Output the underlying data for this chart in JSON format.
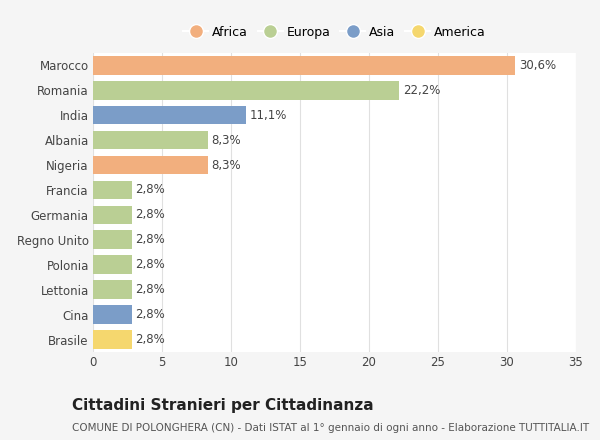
{
  "categories": [
    "Marocco",
    "Romania",
    "India",
    "Albania",
    "Nigeria",
    "Francia",
    "Germania",
    "Regno Unito",
    "Polonia",
    "Lettonia",
    "Cina",
    "Brasile"
  ],
  "values": [
    30.6,
    22.2,
    11.1,
    8.3,
    8.3,
    2.8,
    2.8,
    2.8,
    2.8,
    2.8,
    2.8,
    2.8
  ],
  "labels": [
    "30,6%",
    "22,2%",
    "11,1%",
    "8,3%",
    "8,3%",
    "2,8%",
    "2,8%",
    "2,8%",
    "2,8%",
    "2,8%",
    "2,8%",
    "2,8%"
  ],
  "continents": [
    "Africa",
    "Europa",
    "Asia",
    "Europa",
    "Africa",
    "Europa",
    "Europa",
    "Europa",
    "Europa",
    "Europa",
    "Asia",
    "America"
  ],
  "colors": {
    "Africa": "#F2AF7E",
    "Europa": "#BACF94",
    "Asia": "#7B9DC8",
    "America": "#F5D76E"
  },
  "legend_order": [
    "Africa",
    "Europa",
    "Asia",
    "America"
  ],
  "title": "Cittadini Stranieri per Cittadinanza",
  "subtitle": "COMUNE DI POLONGHERA (CN) - Dati ISTAT al 1° gennaio di ogni anno - Elaborazione TUTTITALIA.IT",
  "xlim": [
    0,
    35
  ],
  "xticks": [
    0,
    5,
    10,
    15,
    20,
    25,
    30,
    35
  ],
  "fig_background_color": "#f5f5f5",
  "plot_background_color": "#ffffff",
  "grid_color": "#e0e0e0",
  "title_fontsize": 11,
  "subtitle_fontsize": 7.5,
  "label_fontsize": 8.5,
  "tick_fontsize": 8.5,
  "legend_fontsize": 9
}
